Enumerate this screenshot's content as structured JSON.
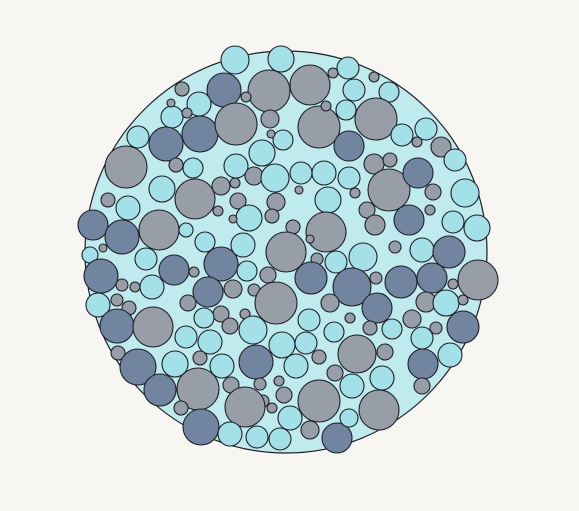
{
  "diagram": {
    "type": "circle-packing",
    "colors": {
      "background": "#f7f6f3",
      "container_fill": "#bfeaee",
      "outline": "#1f1f26",
      "light_blue": "#a4e0e8",
      "gray": "#979ea8",
      "slate_blue": "#7185a1"
    }
  }
}
